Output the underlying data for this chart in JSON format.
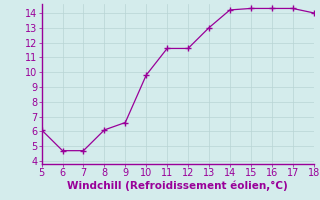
{
  "x": [
    5,
    6,
    7,
    8,
    9,
    10,
    11,
    12,
    13,
    14,
    15,
    16,
    17,
    18
  ],
  "y": [
    6.1,
    4.7,
    4.7,
    6.1,
    6.6,
    9.8,
    11.6,
    11.6,
    13.0,
    14.2,
    14.3,
    14.3,
    14.3,
    14.0
  ],
  "xlim": [
    5,
    18
  ],
  "ylim": [
    3.8,
    14.6
  ],
  "xticks": [
    5,
    6,
    7,
    8,
    9,
    10,
    11,
    12,
    13,
    14,
    15,
    16,
    17,
    18
  ],
  "yticks": [
    4,
    5,
    6,
    7,
    8,
    9,
    10,
    11,
    12,
    13,
    14
  ],
  "xlabel": "Windchill (Refroidissement éolien,°C)",
  "line_color": "#990099",
  "marker": "+",
  "bg_color": "#d4ecec",
  "grid_color": "#b8d4d4",
  "tick_color": "#990099",
  "label_color": "#990099",
  "font_size": 7,
  "xlabel_fontsize": 7.5
}
